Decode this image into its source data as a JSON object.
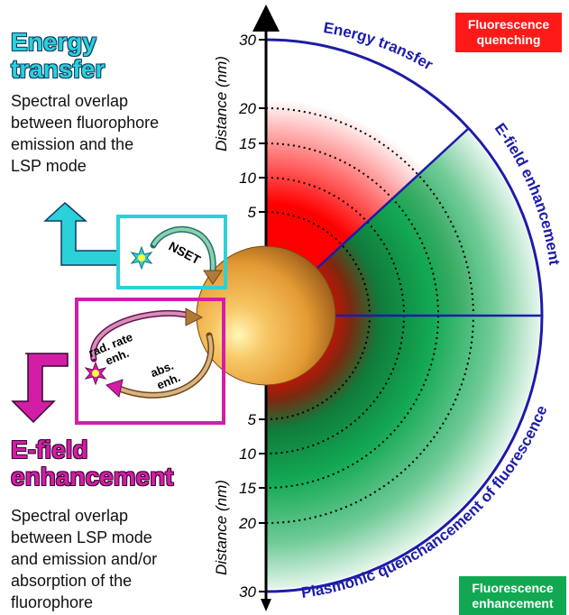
{
  "energy_transfer": {
    "heading": [
      "Energy",
      "transfer"
    ],
    "description": [
      "Spectral overlap",
      "between fluorophore",
      "emission and the",
      "LSP mode"
    ]
  },
  "efield_enhancement": {
    "heading": [
      "E-field",
      "enhancement"
    ],
    "description": [
      "Spectral overlap",
      "between LSP mode",
      "and emission and/or",
      "absorption of the",
      "fluorophore"
    ]
  },
  "legend": {
    "quenching": [
      "Fluorescence",
      "quenching"
    ],
    "enhancement": [
      "Fluorescence",
      "enhancement"
    ]
  },
  "axis": {
    "label": "Distance (nm)",
    "ticks_top": [
      "30",
      "20",
      "15",
      "10",
      "5"
    ],
    "ticks_bottom": [
      "5",
      "10",
      "15",
      "20",
      "30"
    ],
    "tick_values": [
      5,
      10,
      15,
      20,
      30
    ]
  },
  "arc_labels": {
    "energy_transfer": "Energy transfer",
    "efield_enhancement": "E-field enhancement",
    "plasmonic": "Plasmonic quenchancement of fluorescence"
  },
  "inset": {
    "nset": "NSET",
    "rad_rate": [
      "rad. rate",
      "enh."
    ],
    "abs": [
      "abs.",
      "enh."
    ]
  },
  "colors": {
    "cyan": "#2ad1d8",
    "magenta": "#d21ea7",
    "navy": "#1c1ca8",
    "quench_red": "#ff1a1a",
    "enhance_green": "#12a852",
    "sphere": "#e39a33"
  }
}
